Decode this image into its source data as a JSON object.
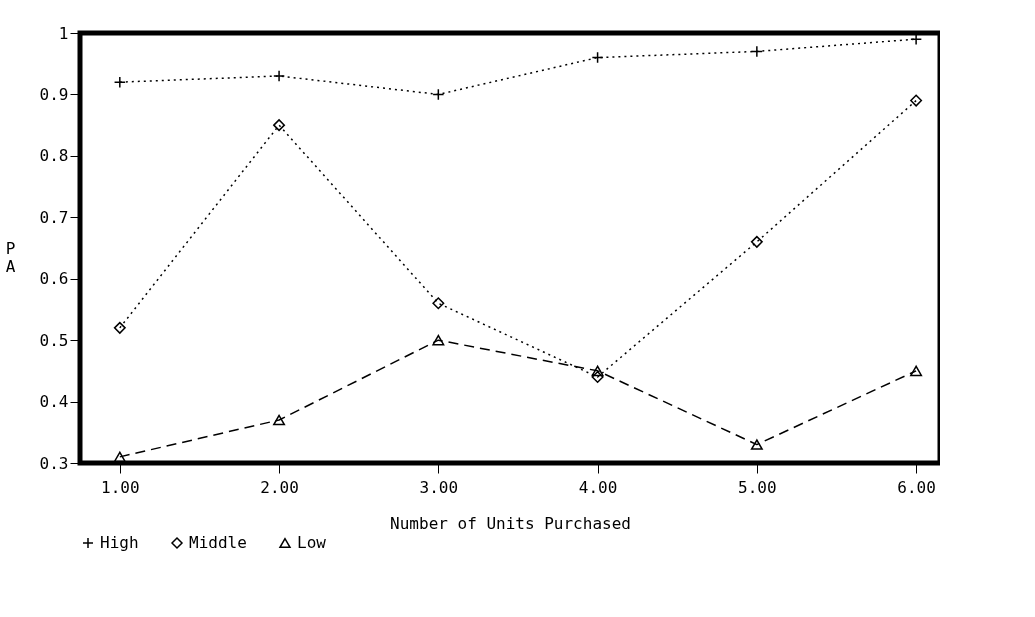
{
  "chart_data": {
    "type": "line",
    "xlabel": "Number of Units Purchased",
    "ylabel": "PA",
    "x": [
      1,
      2,
      3,
      4,
      5,
      6
    ],
    "xlim": [
      0.75,
      6.15
    ],
    "xticks": [
      {
        "value": 1,
        "label": "1.00"
      },
      {
        "value": 2,
        "label": "2.00"
      },
      {
        "value": 3,
        "label": "3.00"
      },
      {
        "value": 4,
        "label": "4.00"
      },
      {
        "value": 5,
        "label": "5.00"
      },
      {
        "value": 6,
        "label": "6.00"
      }
    ],
    "ylim": [
      0.3,
      1
    ],
    "yticks": [
      0.3,
      0.4,
      0.5,
      0.6,
      0.7,
      0.8,
      0.9,
      1
    ],
    "grid": false,
    "legend": "bottom",
    "series": [
      {
        "name": "High",
        "color": "#000000",
        "marker": "cross",
        "line_style": "dotted",
        "values": [
          0.92,
          0.93,
          0.9,
          0.96,
          0.97,
          0.99
        ]
      },
      {
        "name": "Middle",
        "color": "#000000",
        "marker": "diamond",
        "line_style": "dotted",
        "values": [
          0.52,
          0.85,
          0.56,
          0.44,
          0.66,
          0.89
        ]
      },
      {
        "name": "Low",
        "color": "#000000",
        "marker": "triangle",
        "line_style": "dashed",
        "values": [
          0.31,
          0.37,
          0.5,
          0.45,
          0.33,
          0.45
        ]
      }
    ]
  }
}
